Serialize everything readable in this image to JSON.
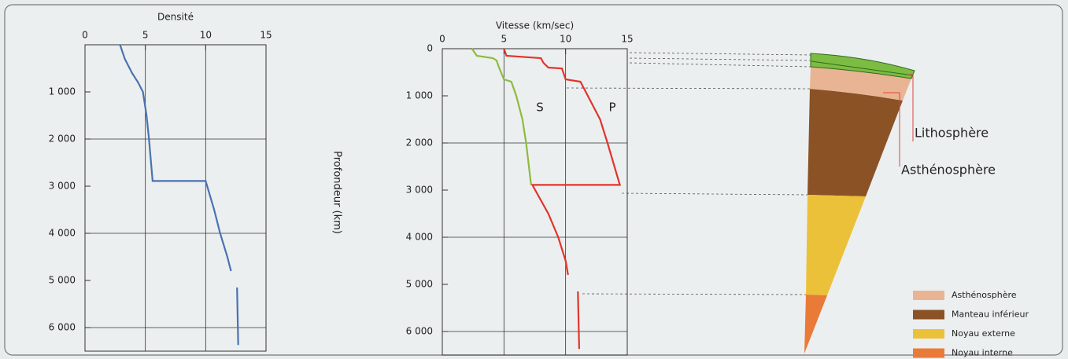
{
  "depth_axis_label": "Profondeur (km)",
  "chart_data": [
    {
      "type": "line",
      "title": "Densité",
      "ylim": [
        0,
        6500
      ],
      "xlim": [
        0,
        15
      ],
      "xticks": [
        0,
        5,
        10,
        15
      ],
      "xgrid": [
        5,
        10
      ],
      "yticks": [
        {
          "value": 1000,
          "label": "1 000"
        },
        {
          "value": 2000,
          "label": "2 000"
        },
        {
          "value": 3000,
          "label": "3 000"
        },
        {
          "value": 4000,
          "label": "4 000"
        },
        {
          "value": 5000,
          "label": "5 000"
        },
        {
          "value": 6000,
          "label": "6 000"
        }
      ],
      "ygrid": [
        2000,
        4000,
        6000
      ],
      "series": [
        {
          "color": "#4a72b0",
          "x": [
            0,
            300,
            600,
            800,
            1000,
            1500,
            2000,
            2890,
            2890,
            3500,
            4000,
            4500,
            4800,
            null,
            5150,
            6370
          ],
          "values": [
            2.9,
            3.3,
            3.9,
            4.4,
            4.8,
            5.1,
            5.3,
            5.6,
            10.0,
            10.7,
            11.2,
            11.8,
            12.1,
            null,
            12.6,
            12.7
          ]
        }
      ]
    },
    {
      "type": "line",
      "title": "Vitesse (km/sec)",
      "ylim": [
        0,
        6500
      ],
      "xlim": [
        0,
        15
      ],
      "xticks": [
        0,
        5,
        10,
        15
      ],
      "xgrid": [
        5,
        10
      ],
      "yticks": [
        0,
        {
          "value": 1000,
          "label": "1 000"
        },
        {
          "value": 2000,
          "label": "2 000"
        },
        {
          "value": 3000,
          "label": "3 000"
        },
        {
          "value": 4000,
          "label": "4 000"
        },
        {
          "value": 5000,
          "label": "5 000"
        },
        {
          "value": 6000,
          "label": "6 000"
        }
      ],
      "ygrid": [
        2000,
        4000,
        6000
      ],
      "series": [
        {
          "name": "S",
          "color": "#8dbb3c",
          "x": [
            0,
            150,
            200,
            250,
            400,
            650,
            700,
            1000,
            1500,
            2000,
            2890
          ],
          "values": [
            2.4,
            2.8,
            4.1,
            4.4,
            4.6,
            5.0,
            5.6,
            6.0,
            6.5,
            6.8,
            7.2
          ]
        },
        {
          "name": "P",
          "color": "#e0352b",
          "x": [
            0,
            150,
            200,
            300,
            400,
            420,
            650,
            700,
            1000,
            1500,
            2000,
            2890,
            2890,
            3500,
            4000,
            4500,
            4800,
            null,
            5150,
            6370
          ],
          "values": [
            5.0,
            5.2,
            8.0,
            8.2,
            8.6,
            9.7,
            10.0,
            11.2,
            11.8,
            12.8,
            13.4,
            14.4,
            7.3,
            8.6,
            9.4,
            10.0,
            10.2,
            null,
            11.0,
            11.1
          ]
        }
      ]
    }
  ],
  "diagram": {
    "labels": [
      "Lithosphère",
      "Asthénosphère"
    ],
    "legend": [
      {
        "name": "Asthénosphère",
        "color": "#e9b493"
      },
      {
        "name": "Manteau inférieur",
        "color": "#8b5226"
      },
      {
        "name": "Noyau externe",
        "color": "#ecc13a"
      },
      {
        "name": "Noyau interne",
        "color": "#ea7a37"
      }
    ]
  }
}
